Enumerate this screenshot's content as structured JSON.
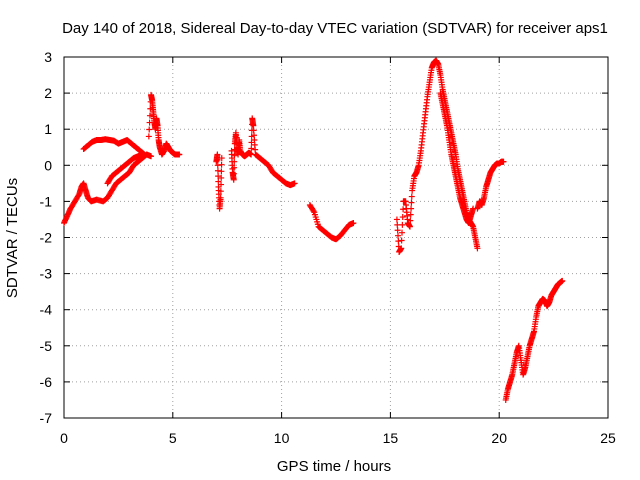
{
  "chart_data": {
    "type": "scatter",
    "title": "Day 140 of 2018, Sidereal Day-to-day VTEC variation (SDTVAR) for receiver aps1",
    "xlabel": "GPS time / hours",
    "ylabel": "SDTVAR / TECUs",
    "xlim": [
      0,
      25
    ],
    "ylim": [
      -7,
      3
    ],
    "x_ticks": [
      "0",
      "5",
      "10",
      "15",
      "20",
      "25"
    ],
    "y_ticks": [
      "-7",
      "-6",
      "-5",
      "-4",
      "-3",
      "-2",
      "-1",
      "0",
      "1",
      "2",
      "3"
    ],
    "grid": true,
    "marker": "+",
    "color": "#ff0000",
    "segments": [
      {
        "name": "segment-1",
        "x": [
          0.0,
          0.15,
          0.3,
          0.5,
          0.7,
          0.8,
          0.9,
          1.0,
          1.1,
          1.25,
          1.5,
          1.8,
          2.0,
          2.2,
          2.4,
          2.6,
          2.8,
          3.0,
          3.2,
          3.4,
          3.6,
          3.8,
          4.0
        ],
        "y": [
          -1.6,
          -1.4,
          -1.2,
          -1.0,
          -0.8,
          -0.6,
          -0.5,
          -0.7,
          -0.9,
          -1.0,
          -0.95,
          -1.0,
          -0.9,
          -0.7,
          -0.5,
          -0.4,
          -0.3,
          -0.2,
          0.0,
          0.1,
          0.2,
          0.3,
          0.25
        ]
      },
      {
        "name": "segment-2",
        "x": [
          0.9,
          1.1,
          1.3,
          1.5,
          1.7,
          1.9,
          2.1,
          2.3,
          2.5,
          2.7,
          2.9,
          3.1,
          3.3,
          3.5,
          3.7
        ],
        "y": [
          0.45,
          0.55,
          0.65,
          0.7,
          0.7,
          0.72,
          0.7,
          0.68,
          0.6,
          0.65,
          0.7,
          0.6,
          0.5,
          0.4,
          0.3
        ]
      },
      {
        "name": "segment-3",
        "x": [
          2.0,
          2.2,
          2.4,
          2.6,
          2.8,
          3.0,
          3.2,
          3.4,
          3.6
        ],
        "y": [
          -0.5,
          -0.3,
          -0.2,
          -0.1,
          0.0,
          0.1,
          0.2,
          0.25,
          0.3
        ]
      },
      {
        "name": "segment-4",
        "x": [
          3.9,
          4.0,
          4.05,
          4.1,
          4.15,
          4.2,
          4.25,
          4.3,
          4.35,
          4.4,
          4.5,
          4.6,
          4.7,
          4.8,
          4.9,
          5.0,
          5.1,
          5.2,
          5.3
        ],
        "y": [
          0.8,
          1.95,
          1.8,
          1.5,
          1.2,
          1.0,
          1.3,
          1.1,
          0.7,
          0.5,
          0.3,
          0.4,
          0.6,
          0.5,
          0.4,
          0.35,
          0.3,
          0.3,
          0.3
        ]
      },
      {
        "name": "segment-5",
        "x": [
          7.0,
          7.05,
          7.1,
          7.15,
          7.2,
          7.25
        ],
        "y": [
          0.1,
          0.3,
          -0.6,
          -1.2,
          -0.9,
          0.2
        ]
      },
      {
        "name": "segment-6",
        "x": [
          7.7,
          7.75,
          7.8,
          7.85,
          7.9,
          7.95,
          8.0,
          8.05,
          8.1,
          8.2,
          8.3,
          8.4,
          8.5,
          8.6,
          8.65,
          8.7,
          8.8,
          9.0,
          9.2,
          9.4,
          9.6,
          9.8,
          10.0,
          10.2,
          10.4,
          10.6
        ],
        "y": [
          0.4,
          -0.2,
          -0.4,
          0.6,
          0.9,
          0.5,
          0.3,
          0.7,
          0.4,
          0.3,
          0.25,
          0.3,
          0.35,
          0.3,
          1.3,
          1.1,
          0.3,
          0.2,
          0.1,
          0.0,
          -0.2,
          -0.3,
          -0.4,
          -0.5,
          -0.55,
          -0.5
        ]
      },
      {
        "name": "segment-7",
        "x": [
          11.3,
          11.5,
          11.7,
          11.9,
          12.1,
          12.3,
          12.5,
          12.7,
          12.9,
          13.1,
          13.3
        ],
        "y": [
          -1.1,
          -1.3,
          -1.7,
          -1.8,
          -1.9,
          -2.0,
          -2.05,
          -1.95,
          -1.8,
          -1.65,
          -1.6
        ]
      },
      {
        "name": "segment-8",
        "x": [
          15.3,
          15.4,
          15.5,
          15.6,
          15.7,
          15.8,
          15.9,
          16.0,
          16.1,
          16.2,
          16.3,
          16.4,
          16.5,
          16.6,
          16.7,
          16.8,
          16.9,
          17.0,
          17.1,
          17.2,
          17.3,
          17.4,
          17.5,
          17.6,
          17.7,
          17.8,
          17.9,
          18.0,
          18.1,
          18.2,
          18.3,
          18.4,
          18.5,
          18.6,
          18.7,
          18.8,
          18.9,
          19.0
        ],
        "y": [
          -1.5,
          -2.4,
          -2.3,
          -1.0,
          -1.0,
          -1.6,
          -1.7,
          -0.7,
          -0.3,
          -0.2,
          0.0,
          0.4,
          0.9,
          1.4,
          1.9,
          2.3,
          2.7,
          2.85,
          2.9,
          2.8,
          2.5,
          2.1,
          1.8,
          1.5,
          1.2,
          0.9,
          0.6,
          0.3,
          -0.1,
          -0.4,
          -0.7,
          -1.0,
          -1.3,
          -1.5,
          -1.6,
          -1.7,
          -2.0,
          -2.3
        ]
      },
      {
        "name": "segment-9",
        "x": [
          17.3,
          17.4,
          17.5,
          17.6,
          17.7,
          17.8,
          17.9,
          18.0,
          18.1,
          18.2,
          18.3,
          18.4,
          18.5,
          18.6,
          18.7,
          18.8
        ],
        "y": [
          2.0,
          1.7,
          1.4,
          1.1,
          0.7,
          0.3,
          0.0,
          -0.3,
          -0.6,
          -0.9,
          -1.1,
          -1.3,
          -1.5,
          -1.6,
          -1.4,
          -1.2
        ]
      },
      {
        "name": "segment-10",
        "x": [
          19.0,
          19.1,
          19.2,
          19.3,
          19.4,
          19.5,
          19.6,
          19.7,
          19.8,
          19.9,
          20.0,
          20.1,
          20.2
        ],
        "y": [
          -1.2,
          -1.0,
          -1.1,
          -0.9,
          -0.6,
          -0.4,
          -0.2,
          -0.1,
          0.0,
          0.05,
          0.05,
          0.1,
          0.1
        ]
      },
      {
        "name": "segment-11",
        "x": [
          20.3,
          20.4,
          20.5,
          20.6,
          20.7,
          20.8,
          20.9,
          21.0,
          21.1,
          21.2,
          21.3,
          21.4,
          21.5,
          21.6,
          21.7,
          21.8,
          21.9,
          22.0,
          22.1,
          22.2,
          22.3,
          22.4,
          22.5,
          22.6,
          22.7,
          22.8,
          22.9
        ],
        "y": [
          -6.5,
          -6.2,
          -6.0,
          -5.8,
          -5.5,
          -5.2,
          -5.0,
          -5.4,
          -5.8,
          -5.6,
          -5.3,
          -5.0,
          -4.8,
          -4.6,
          -4.2,
          -3.9,
          -3.8,
          -3.7,
          -3.75,
          -3.9,
          -3.8,
          -3.6,
          -3.5,
          -3.4,
          -3.3,
          -3.25,
          -3.2
        ]
      }
    ]
  }
}
